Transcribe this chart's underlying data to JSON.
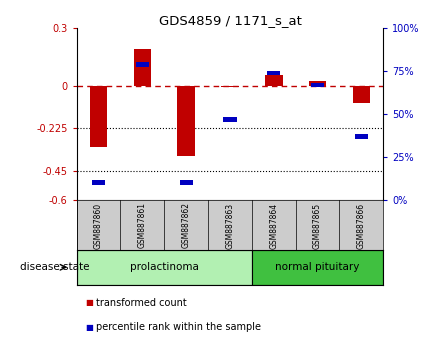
{
  "title": "GDS4859 / 1171_s_at",
  "samples": [
    "GSM887860",
    "GSM887861",
    "GSM887862",
    "GSM887863",
    "GSM887864",
    "GSM887865",
    "GSM887866"
  ],
  "transformed_count": [
    -0.32,
    0.19,
    -0.37,
    -0.01,
    0.055,
    0.025,
    -0.09
  ],
  "percentile_rank": [
    10,
    79,
    10,
    47,
    74,
    67,
    37
  ],
  "groups": [
    {
      "label": "prolactinoma",
      "start": 0,
      "end": 4,
      "color": "#b2f0b2"
    },
    {
      "label": "normal pituitary",
      "start": 4,
      "end": 7,
      "color": "#40c040"
    }
  ],
  "ylim_left": [
    -0.6,
    0.3
  ],
  "ylim_right": [
    0,
    100
  ],
  "yticks_left": [
    -0.6,
    -0.45,
    -0.225,
    0,
    0.3
  ],
  "yticks_right": [
    0,
    25,
    50,
    75,
    100
  ],
  "ytick_labels_left": [
    "-0.6",
    "-0.45",
    "-0.225",
    "0",
    "0.3"
  ],
  "ytick_labels_right": [
    "0%",
    "25%",
    "50%",
    "75%",
    "100%"
  ],
  "hline_y": 0,
  "dotted_lines": [
    -0.225,
    -0.45
  ],
  "bar_color": "#c00000",
  "square_color": "#0000c0",
  "group_label": "disease state",
  "legend_items": [
    "transformed count",
    "percentile rank within the sample"
  ],
  "legend_colors": [
    "#c00000",
    "#0000c0"
  ],
  "label_bg": "#cccccc",
  "fig_width": 4.38,
  "fig_height": 3.54
}
